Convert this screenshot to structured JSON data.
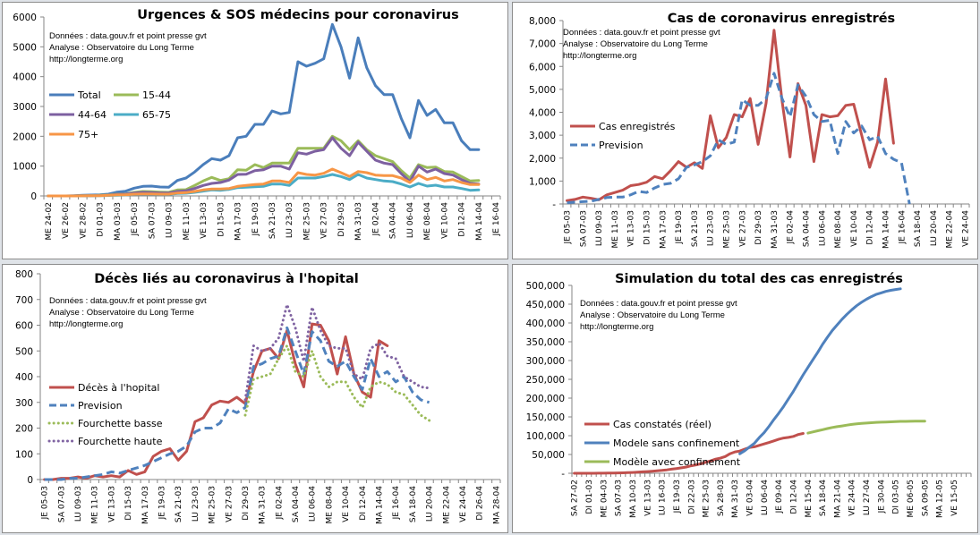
{
  "notes": [
    "Données : data.gouv.fr et point presse gvt",
    "Analyse : Observatoire du Long Terme",
    "http://longterme.org"
  ],
  "chart_data": [
    {
      "id": "urgences",
      "type": "line",
      "title": "Urgences & SOS médecins pour coronavirus",
      "xlabel": "",
      "ylabel": "",
      "ylim": [
        0,
        6000
      ],
      "yticks": [
        0,
        1000,
        2000,
        3000,
        4000,
        5000,
        6000
      ],
      "ytick_labels": [
        "0",
        "1000",
        "2000",
        "3000",
        "4000",
        "5000",
        "6000"
      ],
      "grid": false,
      "legend": "left",
      "x_count": 53,
      "xtick_labels": [
        "ME 24-02",
        "VE 26-02",
        "VE 28-02",
        "DI 01-03",
        "MA 03-03",
        "JE 05-03",
        "SA 07-03",
        "LU 09-03",
        "ME 11-03",
        "VE 13-03",
        "DI 15-03",
        "MA 17-03",
        "JE 19-03",
        "SA 21-03",
        "LU 23-03",
        "ME 25-03",
        "VE 27-03",
        "DI 29-03",
        "MA 31-03",
        "JE 02-04",
        "SA 04-04",
        "LU 06-04",
        "ME 08-04",
        "VE 10-04",
        "DI 12-04",
        "MA 14-04",
        "JE 16-04"
      ],
      "series": [
        {
          "name": "Total",
          "color": "#4a7ebb",
          "dash": "solid",
          "values": [
            0,
            0,
            0,
            10,
            20,
            30,
            40,
            60,
            130,
            160,
            260,
            320,
            330,
            300,
            290,
            520,
            600,
            800,
            1050,
            1250,
            1200,
            1350,
            1950,
            2000,
            2400,
            2400,
            2850,
            2750,
            2800,
            4500,
            4350,
            4450,
            4600,
            5750,
            5000,
            3950,
            5300,
            4300,
            3700,
            3400,
            3400,
            2600,
            1950,
            3200,
            2700,
            2900,
            2450,
            2450,
            1850,
            1550,
            1550
          ]
        },
        {
          "name": "15-44",
          "color": "#9bbb59",
          "dash": "solid",
          "values": [
            0,
            0,
            0,
            0,
            5,
            10,
            20,
            30,
            60,
            70,
            120,
            150,
            140,
            130,
            120,
            200,
            210,
            350,
            500,
            620,
            520,
            580,
            880,
            860,
            1050,
            950,
            1100,
            1100,
            1100,
            1600,
            1600,
            1600,
            1600,
            2000,
            1850,
            1550,
            1850,
            1550,
            1350,
            1250,
            1150,
            850,
            600,
            1050,
            950,
            970,
            820,
            800,
            650,
            500,
            520
          ]
        },
        {
          "name": "44-64",
          "color": "#7d60a0",
          "dash": "solid",
          "values": [
            0,
            0,
            0,
            0,
            5,
            10,
            15,
            25,
            50,
            60,
            100,
            120,
            110,
            100,
            100,
            150,
            170,
            250,
            350,
            420,
            450,
            530,
            720,
            730,
            850,
            880,
            1000,
            1000,
            900,
            1450,
            1400,
            1500,
            1550,
            1950,
            1600,
            1350,
            1800,
            1500,
            1200,
            1100,
            1050,
            750,
            480,
            1000,
            800,
            900,
            750,
            700,
            550,
            420,
            400
          ]
        },
        {
          "name": "65-75",
          "color": "#4bacc6",
          "dash": "solid",
          "values": [
            0,
            0,
            0,
            0,
            2,
            5,
            8,
            15,
            25,
            30,
            50,
            60,
            60,
            50,
            50,
            80,
            90,
            120,
            160,
            200,
            190,
            220,
            280,
            290,
            310,
            320,
            400,
            400,
            350,
            600,
            600,
            600,
            650,
            720,
            650,
            550,
            720,
            600,
            550,
            500,
            480,
            400,
            300,
            420,
            330,
            360,
            300,
            300,
            250,
            190,
            200
          ]
        },
        {
          "name": "75+",
          "color": "#f79646",
          "dash": "solid",
          "values": [
            0,
            0,
            0,
            0,
            3,
            5,
            10,
            20,
            35,
            40,
            60,
            70,
            70,
            60,
            60,
            100,
            110,
            150,
            200,
            230,
            230,
            250,
            320,
            350,
            380,
            400,
            500,
            500,
            450,
            780,
            720,
            700,
            760,
            900,
            780,
            650,
            820,
            780,
            700,
            680,
            680,
            600,
            450,
            700,
            550,
            620,
            500,
            550,
            450,
            380,
            380
          ]
        }
      ]
    },
    {
      "id": "cas",
      "type": "line",
      "title": "Cas de coronavirus enregistrés",
      "xlabel": "",
      "ylabel": "",
      "ylim": [
        0,
        8000
      ],
      "yticks": [
        0,
        1000,
        2000,
        3000,
        4000,
        5000,
        6000,
        7000,
        8000
      ],
      "ytick_labels": [
        "-",
        "1,000",
        "2,000",
        "3,000",
        "4,000",
        "5,000",
        "6,000",
        "7,000",
        "8,000"
      ],
      "grid": false,
      "legend": "left",
      "x_count": 51,
      "xtick_labels": [
        "JE 05-03",
        "SA 07-03",
        "LU 09-03",
        "ME 11-03",
        "VE 13-03",
        "DI 15-03",
        "MA 17-03",
        "JE 19-03",
        "SA 21-03",
        "LU 23-03",
        "ME 25-03",
        "VE 27-03",
        "DI 29-03",
        "MA 31-03",
        "JE 02-04",
        "SA 04-04",
        "LU 06-04",
        "ME 08-04",
        "VE 10-04",
        "DI 12-04",
        "MA 14-04",
        "JE 16-04",
        "SA 18-04",
        "LU 20-04",
        "ME 22-04",
        "VE 24-04"
      ],
      "series": [
        {
          "name": "Cas enregistrés",
          "color": "#c0504d",
          "dash": "solid",
          "values": [
            150,
            200,
            300,
            250,
            180,
            400,
            500,
            600,
            800,
            850,
            950,
            1200,
            1100,
            1450,
            1850,
            1600,
            1800,
            1550,
            3850,
            2450,
            2900,
            3900,
            3800,
            4600,
            2600,
            4400,
            7580,
            4500,
            2050,
            5250,
            4300,
            1850,
            3900,
            3800,
            3850,
            4300,
            4350,
            3000,
            1600,
            2700,
            5450,
            2650
          ]
        },
        {
          "name": "Prevision",
          "color": "#4f81bd",
          "dash": "dashed",
          "values": [
            50,
            80,
            100,
            120,
            200,
            280,
            300,
            300,
            400,
            550,
            500,
            700,
            850,
            900,
            1100,
            1600,
            1700,
            1850,
            2100,
            2800,
            2600,
            2700,
            4550,
            4300,
            4300,
            4600,
            5700,
            4600,
            3800,
            5200,
            4700,
            3900,
            3600,
            3650,
            2200,
            3600,
            3100,
            3400,
            2800,
            2950,
            2200,
            1950,
            1800,
            0
          ]
        }
      ]
    },
    {
      "id": "deces",
      "type": "line",
      "title": "Décès liés au coronavirus à l'hopital",
      "xlabel": "",
      "ylabel": "",
      "ylim": [
        0,
        800
      ],
      "yticks": [
        0,
        100,
        200,
        300,
        400,
        500,
        600,
        700,
        800
      ],
      "ytick_labels": [
        "0",
        "100",
        "200",
        "300",
        "400",
        "500",
        "600",
        "700",
        "800"
      ],
      "grid": false,
      "legend": "left",
      "x_count": 55,
      "xtick_labels": [
        "JE 05-03",
        "SA 07-03",
        "LU 09-03",
        "ME 11-03",
        "VE 13-03",
        "DI 15-03",
        "MA 17-03",
        "JE 19-03",
        "SA 21-03",
        "LU 23-03",
        "ME 25-03",
        "VE 27-03",
        "DI 29-03",
        "MA 31-03",
        "JE 02-04",
        "SA 04-04",
        "LU 06-04",
        "ME 08-04",
        "VE 10-04",
        "DI 12-04",
        "MA 14-04",
        "JE 16-04",
        "SA 18-04",
        "LU 20-04",
        "ME 22-04",
        "VE 24-04",
        "DI 26-04",
        "MA 28-04"
      ],
      "series": [
        {
          "name": "Décès à l'hopital",
          "color": "#c0504d",
          "dash": "solid",
          "start": 0,
          "values": [
            0,
            0,
            5,
            5,
            10,
            5,
            15,
            10,
            15,
            10,
            35,
            20,
            30,
            90,
            110,
            120,
            75,
            110,
            225,
            240,
            290,
            305,
            300,
            320,
            295,
            420,
            500,
            510,
            470,
            580,
            450,
            360,
            605,
            600,
            540,
            410,
            555,
            410,
            340,
            320,
            540,
            520
          ]
        },
        {
          "name": "Prevision",
          "color": "#4f81bd",
          "dash": "dashed",
          "start": 0,
          "values": [
            0,
            0,
            0,
            5,
            5,
            10,
            15,
            20,
            30,
            25,
            35,
            45,
            55,
            70,
            85,
            100,
            110,
            130,
            185,
            200,
            200,
            220,
            275,
            260,
            280,
            440,
            450,
            470,
            480,
            590,
            500,
            410,
            575,
            540,
            460,
            440,
            460,
            400,
            350,
            470,
            400,
            420,
            380,
            400,
            340,
            310,
            300
          ]
        },
        {
          "name": "Fourchette basse",
          "color": "#9bbb59",
          "dash": "dotted",
          "start": 24,
          "values": [
            250,
            390,
            400,
            410,
            470,
            520,
            420,
            400,
            500,
            400,
            360,
            380,
            380,
            320,
            280,
            360,
            380,
            370,
            340,
            330,
            290,
            250,
            230
          ]
        },
        {
          "name": "Fourchette haute",
          "color": "#8064a2",
          "dash": "dotted",
          "start": 24,
          "values": [
            310,
            520,
            500,
            510,
            550,
            680,
            590,
            460,
            670,
            580,
            520,
            510,
            510,
            410,
            390,
            510,
            530,
            480,
            470,
            400,
            380,
            360,
            355
          ]
        }
      ]
    },
    {
      "id": "simulation",
      "type": "line",
      "title": "Simulation du total des cas enregistrés",
      "xlabel": "",
      "ylabel": "",
      "ylim": [
        0,
        500000
      ],
      "yticks": [
        0,
        50000,
        100000,
        150000,
        200000,
        250000,
        300000,
        350000,
        400000,
        450000,
        500000
      ],
      "ytick_labels": [
        "-",
        "50,000",
        "100,000",
        "150,000",
        "200,000",
        "250,000",
        "300,000",
        "350,000",
        "400,000",
        "450,000",
        "500,000"
      ],
      "grid": false,
      "legend": "left",
      "x_count": 82,
      "xtick_labels": [
        "SA 27-02",
        "DI 01-03",
        "ME 04-03",
        "SA 07-03",
        "MA 10-03",
        "VE 13-03",
        "LU 16-03",
        "JE 19-03",
        "DI 22-03",
        "ME 25-03",
        "SA 28-03",
        "MA 31-03",
        "VE 03-04",
        "LU 06-04",
        "JE 09-04",
        "DI 12-04",
        "ME 15-04",
        "SA 18-04",
        "MA 21-04",
        "VE 24-04",
        "LU 27-04",
        "JE 30-04",
        "DI 03-05",
        "ME 06-05",
        "SA 09-05",
        "MA 12-05",
        "VE 15-05"
      ],
      "series": [
        {
          "name": "Cas constatés (réel)",
          "color": "#c0504d",
          "dash": "solid",
          "start": 0,
          "values": [
            0,
            0,
            0,
            0,
            100,
            200,
            300,
            400,
            600,
            900,
            1200,
            1700,
            2200,
            2900,
            3700,
            4500,
            5400,
            6600,
            7700,
            9100,
            11000,
            12600,
            14500,
            16700,
            19900,
            22300,
            25200,
            29200,
            32900,
            37600,
            40200,
            44500,
            52100,
            56900,
            59100,
            64300,
            68600,
            70500,
            74400,
            78200,
            82000,
            86300,
            90700,
            93700,
            95400,
            98000,
            103000,
            106000
          ]
        },
        {
          "name": "Modele sans confinement",
          "color": "#4f81bd",
          "dash": "solid",
          "start": 34,
          "values": [
            52000,
            60000,
            70000,
            80000,
            95000,
            108000,
            125000,
            143000,
            160000,
            178000,
            198000,
            218000,
            240000,
            262000,
            282000,
            302000,
            322000,
            343000,
            362000,
            380000,
            395000,
            410000,
            423000,
            435000,
            446000,
            455000,
            463000,
            470000,
            476000,
            480000,
            484000,
            487000,
            489000,
            491000
          ]
        },
        {
          "name": "Modèle avec confinement",
          "color": "#9bbb59",
          "dash": "solid",
          "start": 48,
          "values": [
            107000,
            110000,
            113000,
            116000,
            119000,
            122000,
            124000,
            126000,
            128000,
            130000,
            131500,
            132500,
            133500,
            134500,
            135500,
            136000,
            136500,
            137000,
            137500,
            138000,
            138200,
            138400,
            138500,
            138600,
            138700
          ]
        }
      ]
    }
  ]
}
